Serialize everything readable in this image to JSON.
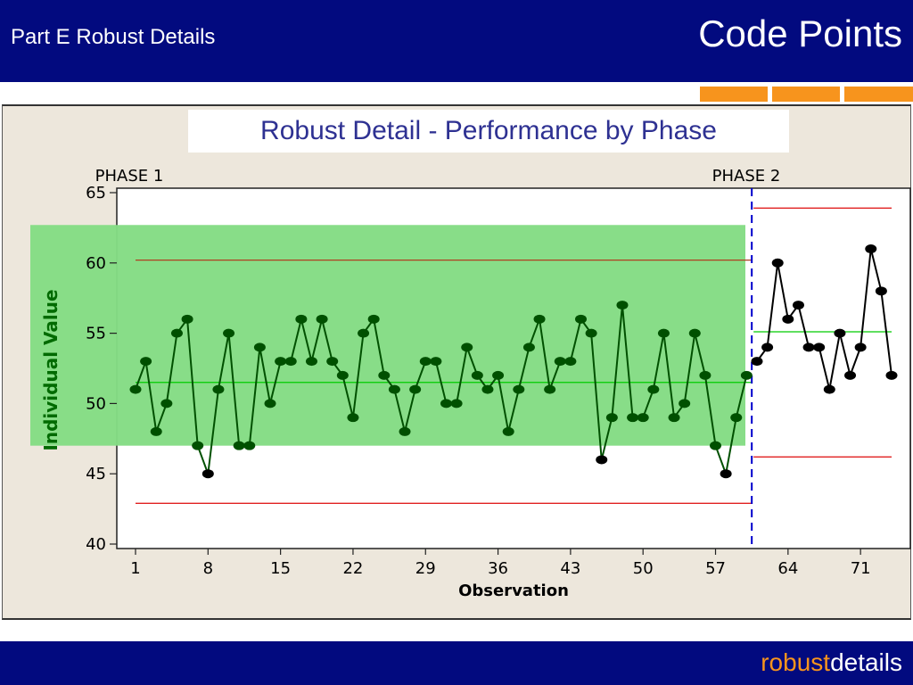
{
  "header": {
    "subtitle": "Part E Robust Details",
    "title": "Code Points"
  },
  "footer": {
    "brand_part1": "robust",
    "brand_part2": "details"
  },
  "colors": {
    "header_bg": "#020a7f",
    "accent": "#f7941d",
    "panel_bg": "#ede7dc",
    "title_text": "#2e3192",
    "phase1_band": "#84dc84",
    "phase1_points": "#005000",
    "phase2_points": "#000000",
    "center_line": "#00cc00",
    "limit_line": "#e02020",
    "ucl_line": "#b04020",
    "phase_divider": "#0000cc"
  },
  "chart_data": {
    "type": "line",
    "title": "Robust Detail - Performance by Phase",
    "xlabel": "Observation",
    "ylabel": "Individual Value",
    "xlim": [
      0,
      75
    ],
    "ylim": [
      40,
      65
    ],
    "x_ticks": [
      "1",
      "8",
      "15",
      "22",
      "29",
      "36",
      "43",
      "50",
      "57",
      "64",
      "71"
    ],
    "y_ticks": [
      "40",
      "45",
      "50",
      "55",
      "60",
      "65"
    ],
    "phase_labels": [
      "PHASE 1",
      "PHASE 2"
    ],
    "phase_boundary": 60.5,
    "phase1_band": [
      47,
      62.7
    ],
    "series": [
      {
        "x_start": 1,
        "values": [
          51,
          53,
          48,
          50,
          55,
          56,
          47,
          45,
          51,
          55,
          47,
          47,
          54,
          50,
          53,
          53,
          56,
          53,
          56,
          53,
          52,
          49,
          55,
          56,
          52,
          51,
          48,
          51,
          53,
          53,
          50,
          50,
          54,
          52,
          51,
          52,
          48,
          51,
          54,
          56,
          51,
          53,
          53,
          56,
          55,
          46,
          49,
          57,
          49,
          49,
          51,
          55,
          49,
          50,
          55,
          52,
          47,
          45,
          49,
          52
        ]
      },
      {
        "x_start": 61,
        "values": [
          53,
          54,
          60,
          56,
          57,
          54,
          54,
          51,
          55,
          52,
          54,
          61,
          58,
          52
        ]
      }
    ],
    "control_limits": [
      {
        "from": 1,
        "to": 60.5,
        "center": 51.5,
        "ucl": 60.2,
        "lcl": 42.9
      },
      {
        "from": 60.5,
        "to": 74,
        "center": 55.1,
        "ucl": 63.9,
        "lcl": 46.2
      }
    ]
  }
}
